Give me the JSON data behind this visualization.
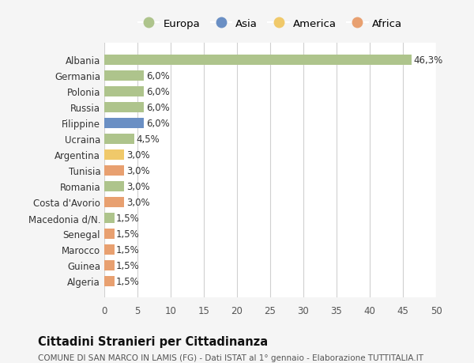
{
  "countries": [
    "Albania",
    "Germania",
    "Polonia",
    "Russia",
    "Filippine",
    "Ucraina",
    "Argentina",
    "Tunisia",
    "Romania",
    "Costa d'Avorio",
    "Macedonia d/N.",
    "Senegal",
    "Marocco",
    "Guinea",
    "Algeria"
  ],
  "values": [
    46.3,
    6.0,
    6.0,
    6.0,
    6.0,
    4.5,
    3.0,
    3.0,
    3.0,
    3.0,
    1.5,
    1.5,
    1.5,
    1.5,
    1.5
  ],
  "labels": [
    "46,3%",
    "6,0%",
    "6,0%",
    "6,0%",
    "6,0%",
    "4,5%",
    "3,0%",
    "3,0%",
    "3,0%",
    "3,0%",
    "1,5%",
    "1,5%",
    "1,5%",
    "1,5%",
    "1,5%"
  ],
  "continents": [
    "Europa",
    "Europa",
    "Europa",
    "Europa",
    "Asia",
    "Europa",
    "America",
    "Africa",
    "Europa",
    "Africa",
    "Europa",
    "Africa",
    "Africa",
    "Africa",
    "Africa"
  ],
  "continent_colors": {
    "Europa": "#aec48c",
    "Asia": "#6a8fc4",
    "America": "#f0c96a",
    "Africa": "#e8a070"
  },
  "legend_order": [
    "Europa",
    "Asia",
    "America",
    "Africa"
  ],
  "legend_colors": {
    "Europa": "#aec48c",
    "Asia": "#6a8fc4",
    "America": "#f0c96a",
    "Africa": "#e8a070"
  },
  "title": "Cittadini Stranieri per Cittadinanza",
  "subtitle": "COMUNE DI SAN MARCO IN LAMIS (FG) - Dati ISTAT al 1° gennaio - Elaborazione TUTTITALIA.IT",
  "xlim": [
    0,
    50
  ],
  "xticks": [
    0,
    5,
    10,
    15,
    20,
    25,
    30,
    35,
    40,
    45,
    50
  ],
  "background_color": "#f5f5f5",
  "bar_background": "#ffffff",
  "grid_color": "#d0d0d0"
}
